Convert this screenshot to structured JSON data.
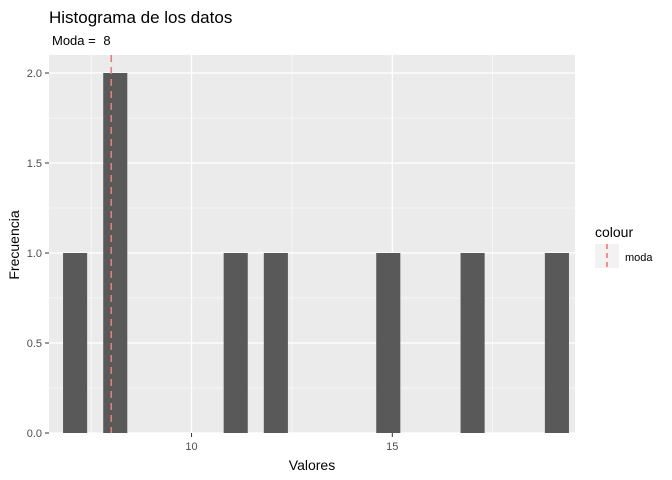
{
  "chart_data": {
    "type": "bar",
    "title": "Histograma de los datos",
    "subtitle_label": "Moda = ",
    "subtitle_value": "8",
    "xlabel": "Valores",
    "ylabel": "Frecuencia",
    "xlim": [
      6.45,
      19.55
    ],
    "ylim": [
      0,
      2.1
    ],
    "bin_width": 0.6,
    "x_ticks": [
      10,
      15
    ],
    "y_ticks": [
      0,
      0.5,
      1,
      1.5,
      2
    ],
    "y_tick_labels": [
      "0.0",
      "0.5",
      "1.0",
      "1.5",
      "2.0"
    ],
    "bins": [
      {
        "x": 7.1,
        "count": 1
      },
      {
        "x": 8.1,
        "count": 2
      },
      {
        "x": 11.1,
        "count": 1
      },
      {
        "x": 12.1,
        "count": 1
      },
      {
        "x": 14.9,
        "count": 1
      },
      {
        "x": 17.0,
        "count": 1
      },
      {
        "x": 19.1,
        "count": 1
      }
    ],
    "mode_line": {
      "x": 8,
      "color": "#F8766D",
      "style": "dashed"
    },
    "legend": {
      "title": "colour",
      "items": [
        {
          "label": "moda",
          "color": "#F8766D"
        }
      ],
      "position": "right"
    },
    "bar_color": "#595959",
    "panel_color": "#EBEBEB",
    "grid": true
  }
}
